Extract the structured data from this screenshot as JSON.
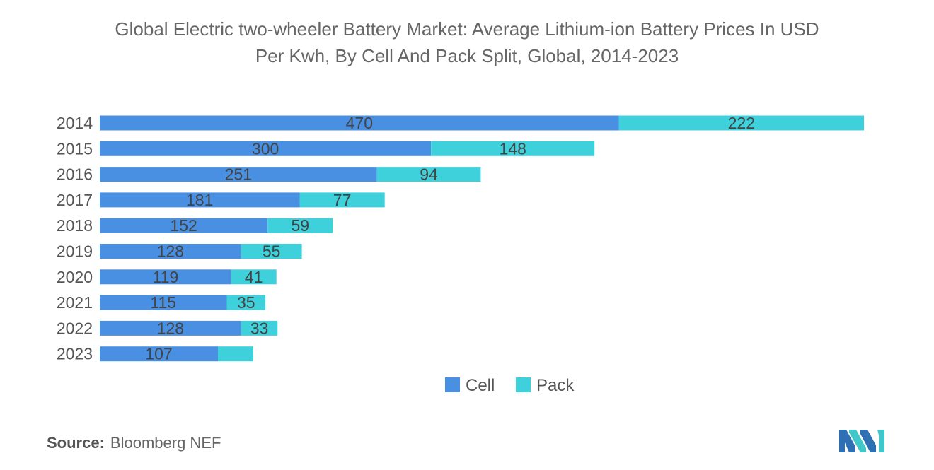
{
  "title_line1": "Global Electric two-wheeler Battery Market: Average Lithium-ion Battery Prices In USD",
  "title_line2": "Per Kwh, By Cell And Pack Split, Global, 2014-2023",
  "source_label": "Source:",
  "source_text": "Bloomberg NEF",
  "colors": {
    "cell": "#4a90e2",
    "pack": "#3fd1db",
    "label": "#444444",
    "axis_text": "#555555"
  },
  "chart_data": {
    "type": "bar",
    "orientation": "horizontal",
    "stacked": true,
    "title": "Global Electric two-wheeler Battery Market: Average Lithium-ion Battery Prices In USD Per Kwh, By Cell And Pack Split, Global, 2014-2023",
    "categories": [
      "2014",
      "2015",
      "2016",
      "2017",
      "2018",
      "2019",
      "2020",
      "2021",
      "2022",
      "2023"
    ],
    "series": [
      {
        "name": "Cell",
        "values": [
          470,
          300,
          251,
          181,
          152,
          128,
          119,
          115,
          128,
          107
        ],
        "labels": [
          "470",
          "300",
          "251",
          "181",
          "152",
          "128",
          "119",
          "115",
          "128",
          "107"
        ]
      },
      {
        "name": "Pack",
        "values": [
          222,
          148,
          94,
          77,
          59,
          55,
          41,
          35,
          33,
          32
        ],
        "labels": [
          "222",
          "148",
          "94",
          "77",
          "59",
          "55",
          "41",
          "35",
          "33",
          ""
        ]
      }
    ],
    "xlim": [
      0,
      692
    ],
    "legend": "bottom-center",
    "grid": false
  }
}
